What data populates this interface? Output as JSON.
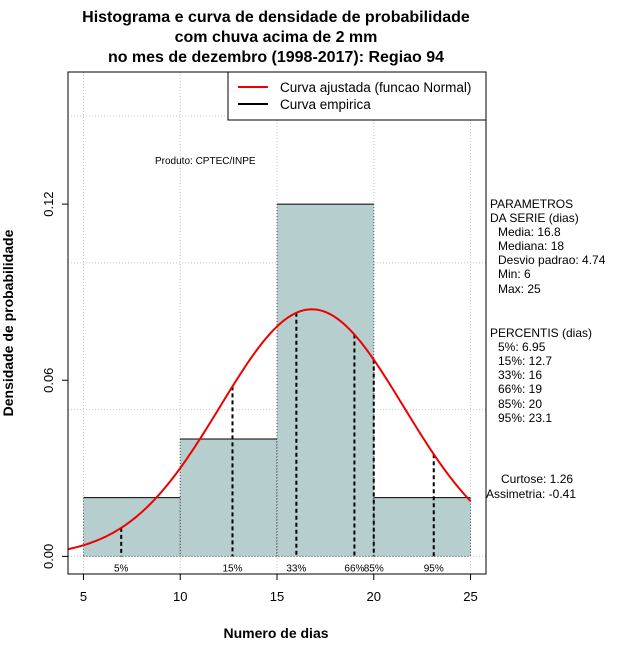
{
  "title_lines": [
    "Histograma e curva de densidade de probabilidade",
    "com chuva acima de 2 mm",
    "no mes de dezembro (1998-2017): Regiao 94"
  ],
  "chart_data": {
    "type": "bar",
    "xlabel": "Numero de dias",
    "ylabel": "Densidade de probabilidade",
    "xlim": [
      4.2,
      25.8
    ],
    "ylim": [
      -0.006,
      0.165
    ],
    "x_ticks": [
      5,
      10,
      15,
      20,
      25
    ],
    "y_ticks": [
      0.0,
      0.06,
      0.12
    ],
    "y_tick_labels": [
      "0.00",
      "0.06",
      "0.12"
    ],
    "grid": true,
    "bar_color": "#b6cece",
    "bins": [
      {
        "from": 5,
        "to": 10,
        "density": 0.02
      },
      {
        "from": 10,
        "to": 15,
        "density": 0.04
      },
      {
        "from": 15,
        "to": 20,
        "density": 0.12
      },
      {
        "from": 20,
        "to": 25,
        "density": 0.02
      }
    ],
    "normal_curve": {
      "mean": 16.8,
      "sd": 4.74,
      "x_range": [
        4.2,
        25
      ],
      "color": "#ee0000"
    },
    "percentile_lines": [
      {
        "label": "5%",
        "x": 6.95
      },
      {
        "label": "15%",
        "x": 12.7
      },
      {
        "label": "33%",
        "x": 16
      },
      {
        "label": "66%",
        "x": 19
      },
      {
        "label": "85%",
        "x": 20
      },
      {
        "label": "95%",
        "x": 23.1
      }
    ],
    "legend": {
      "position": "top-right",
      "entries": [
        {
          "label": "Curva ajustada (funcao Normal)",
          "color": "#ee0000"
        },
        {
          "label": "Curva empirica",
          "color": "#000000"
        }
      ]
    },
    "annotation": "Produto: CPTEC/INPE"
  },
  "side_panel": {
    "parametros": [
      "PARAMETROS",
      "DA SERIE (dias)",
      "Media: 16.8",
      "Mediana: 18",
      "Desvio padrao: 4.74",
      "Min: 6",
      "Max: 25"
    ],
    "percentis": [
      "PERCENTIS (dias)",
      "5%: 6.95",
      "15%: 12.7",
      "33%: 16",
      "66%: 19",
      "85%: 20",
      "95%: 23.1"
    ],
    "shape": [
      "Curtose: 1.26",
      "Assimetria: -0.41"
    ]
  }
}
